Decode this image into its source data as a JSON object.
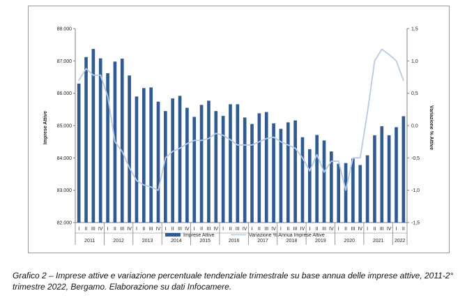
{
  "colors": {
    "bar": "#2f5b92",
    "line": "#b9c9e4",
    "axis": "#7f7f7f"
  },
  "chart_data": {
    "type": "bar",
    "title": "",
    "ylabel_left": "Imprese Attive",
    "ylabel_right": "Variazione % Attive",
    "ylim_left": [
      82000,
      88000
    ],
    "ylim_right": [
      -1.5,
      1.5
    ],
    "yticks_left": [
      "82.000",
      "83.000",
      "84.000",
      "85.000",
      "86.000",
      "87.000",
      "88.000"
    ],
    "yticks_right": [
      "-1,5",
      "-1,0",
      "-0,5",
      "0,0",
      "0,5",
      "1,0",
      "1,5"
    ],
    "quarters": [
      "I",
      "II",
      "III",
      "IV",
      "I",
      "II",
      "III",
      "IV",
      "I",
      "II",
      "III",
      "IV",
      "I",
      "II",
      "III",
      "IV",
      "I",
      "II",
      "III",
      "IV",
      "I",
      "II",
      "III",
      "IV",
      "I",
      "II",
      "III",
      "IV",
      "I",
      "II",
      "III",
      "IV",
      "I",
      "II",
      "III",
      "IV",
      "I",
      "II",
      "III",
      "IV",
      "I",
      "II",
      "III",
      "IV",
      "I",
      "II"
    ],
    "years": [
      "2011",
      "2012",
      "2013",
      "2014",
      "2015",
      "2016",
      "2017",
      "2018",
      "2019",
      "2020",
      "2021",
      "2022"
    ],
    "series": [
      {
        "name": "Imprese Attive",
        "type": "bar",
        "axis": "left",
        "values": [
          86300,
          87120,
          87370,
          87080,
          86620,
          86980,
          87070,
          86550,
          85900,
          86160,
          86180,
          85740,
          85450,
          85840,
          85920,
          85550,
          85270,
          85640,
          85770,
          85450,
          85300,
          85660,
          85660,
          85250,
          85050,
          85380,
          85420,
          85070,
          84900,
          85100,
          85160,
          84640,
          84270,
          84710,
          84540,
          84200,
          83820,
          83840,
          83980,
          83780,
          84080,
          84700,
          84980,
          84700,
          84950,
          85290
        ]
      },
      {
        "name": "Variazione % Annua Imprese Attive",
        "type": "line",
        "axis": "right",
        "values": [
          0.7,
          0.88,
          0.78,
          0.78,
          0.45,
          -0.25,
          -0.4,
          -0.65,
          -0.85,
          -0.92,
          -0.95,
          -1.0,
          -0.5,
          -0.4,
          -0.35,
          -0.28,
          -0.23,
          -0.23,
          -0.2,
          -0.12,
          -0.15,
          -0.22,
          -0.3,
          -0.3,
          -0.3,
          -0.25,
          -0.2,
          -0.18,
          -0.25,
          -0.3,
          -0.35,
          -0.5,
          -0.7,
          -0.45,
          -0.72,
          -0.55,
          -0.55,
          -1.0,
          -0.5,
          -0.5,
          0.2,
          1.0,
          1.18,
          1.1,
          1.0,
          0.7
        ]
      }
    ],
    "legend": [
      "Imprese Attive",
      "Variazione % Annua Imprese Attive"
    ],
    "legend_position": "bottom",
    "grid": false
  },
  "caption": "Grafico 2 – Imprese attive e variazione percentuale tendenziale trimestrale su base annua delle imprese attive, 2011-2° trimestre 2022, Bergamo. Elaborazione su dati Infocamere."
}
